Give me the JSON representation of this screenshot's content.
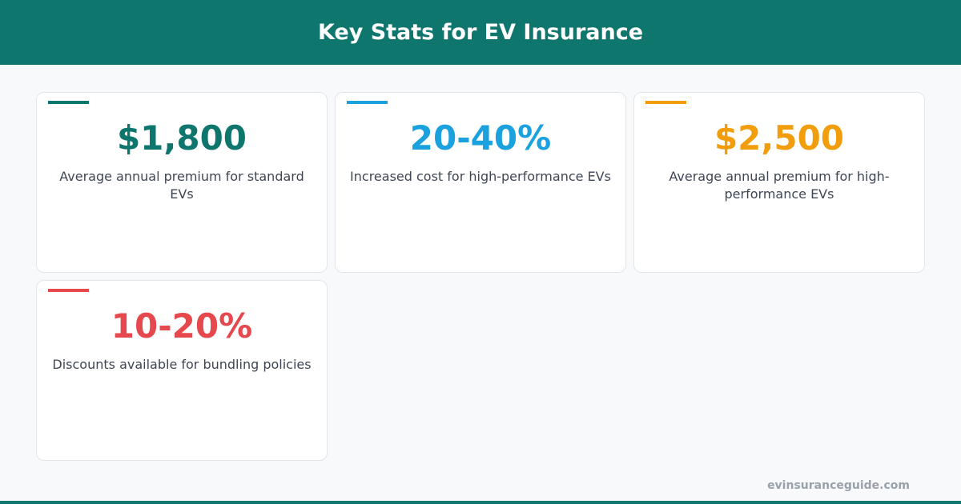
{
  "header": {
    "title": "Key Stats for EV Insurance"
  },
  "cards": [
    {
      "value": "$1,800",
      "label": "Average annual premium for standard EVs",
      "color": "#0f766e"
    },
    {
      "value": "20-40%",
      "label": "Increased cost for high-performance EVs",
      "color": "#1ba1de"
    },
    {
      "value": "$2,500",
      "label": "Average annual premium for high-performance EVs",
      "color": "#f29e0c"
    },
    {
      "value": "10-20%",
      "label": "Discounts available for bundling policies",
      "color": "#e5484d"
    }
  ],
  "footer": {
    "site": "evinsuranceguide.com"
  }
}
